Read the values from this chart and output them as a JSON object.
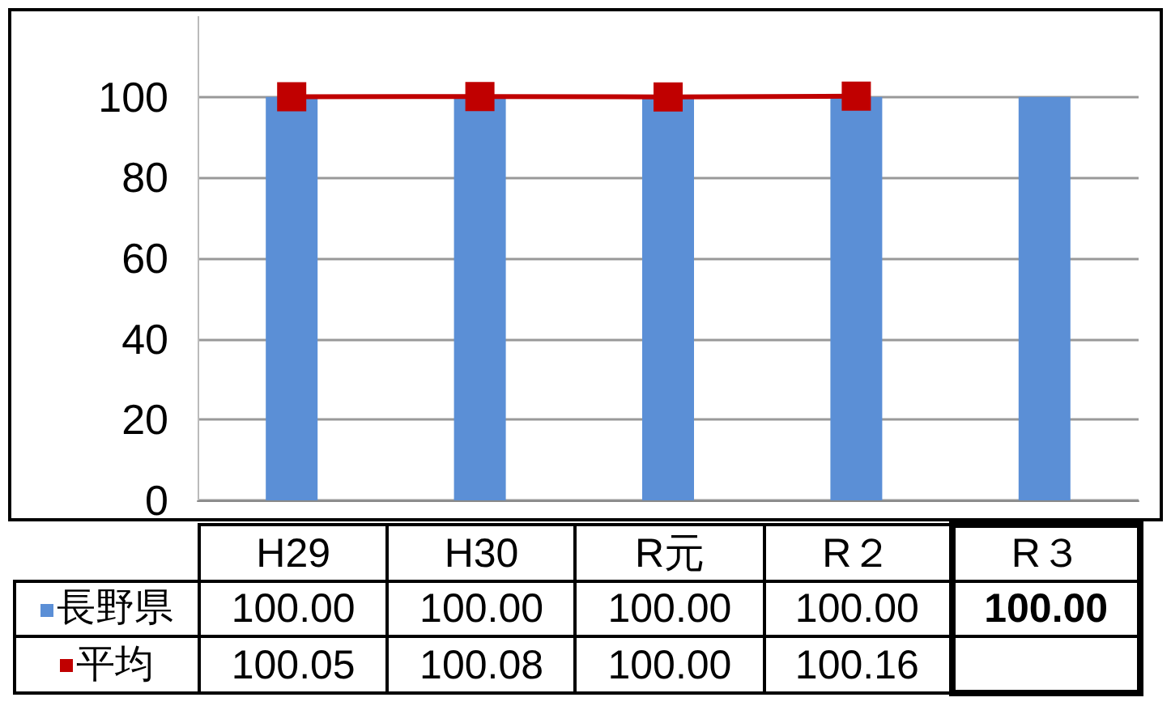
{
  "chart_data": {
    "type": "bar",
    "categories": [
      "H29",
      "H30",
      "R元",
      "R２",
      "R３"
    ],
    "series": [
      {
        "name": "長野県",
        "color": "#5b8fd6",
        "values": [
          100,
          100,
          100,
          100,
          100
        ],
        "value_labels": [
          "100.00",
          "100.00",
          "100.00",
          "100.00",
          "100.00"
        ]
      },
      {
        "name": "平均",
        "type": "line",
        "color": "#c00000",
        "values": [
          100.05,
          100.08,
          100,
          100.16,
          null
        ],
        "value_labels": [
          "100.05",
          "100.08",
          "100.00",
          "100.16",
          null
        ]
      }
    ],
    "ylim": [
      0,
      120
    ],
    "yticks": [
      0,
      20,
      40,
      60,
      80,
      100
    ],
    "grid": "y",
    "legend": "bottom",
    "marker": "square",
    "line_style": "solid"
  }
}
